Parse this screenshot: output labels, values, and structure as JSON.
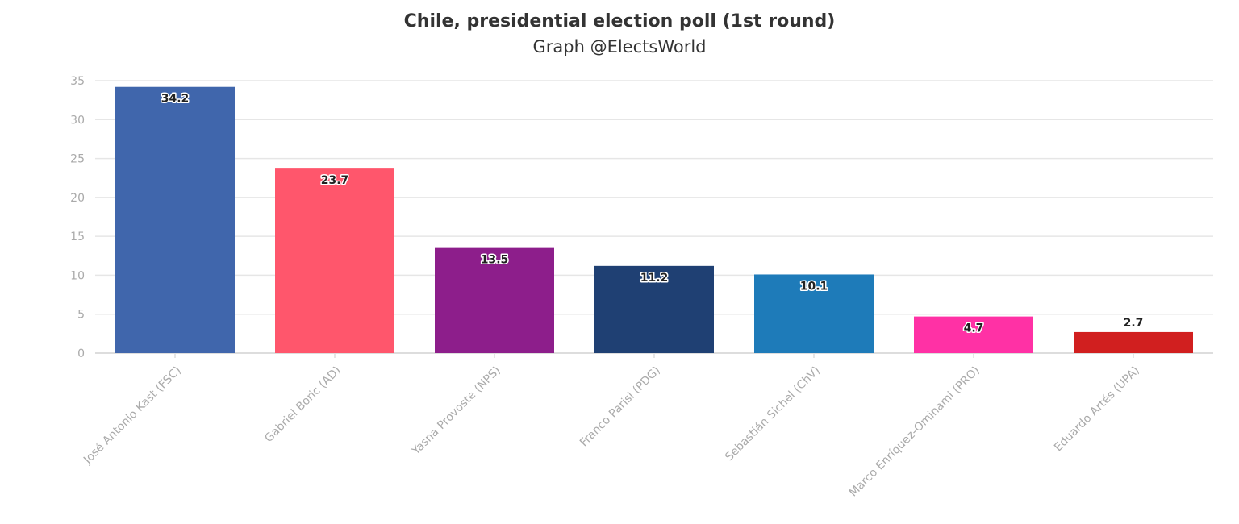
{
  "chart_data": {
    "type": "bar",
    "title": "Chile, presidential election poll (1st round)",
    "subtitle": "Graph @ElectsWorld",
    "xlabel": "",
    "ylabel": "",
    "ylim": [
      0,
      35
    ],
    "yticks": [
      "0",
      "5",
      "10",
      "15",
      "20",
      "25",
      "30",
      "35"
    ],
    "grid": true,
    "legend": "none",
    "categories": [
      "José Antonio Kast (FSC)",
      "Gabriel Boric (AD)",
      "Yasna Provoste (NPS)",
      "Franco Parisi (PDG)",
      "Sebastián Sichel (ChV)",
      "Marco Enríquez-Ominami (PRO)",
      "Eduardo Artés (UPA)"
    ],
    "values": [
      34.2,
      23.7,
      13.5,
      11.2,
      10.1,
      4.7,
      2.7
    ],
    "value_labels": [
      "34.2",
      "23.7",
      "13.5",
      "11.2",
      "10.1",
      "4.7",
      "2.7"
    ],
    "colors": [
      "#3C63AA",
      "#FF5369",
      "#8B1A89",
      "#1B3C70",
      "#1978B8",
      "#FF2DA3",
      "#D01B1B"
    ]
  }
}
